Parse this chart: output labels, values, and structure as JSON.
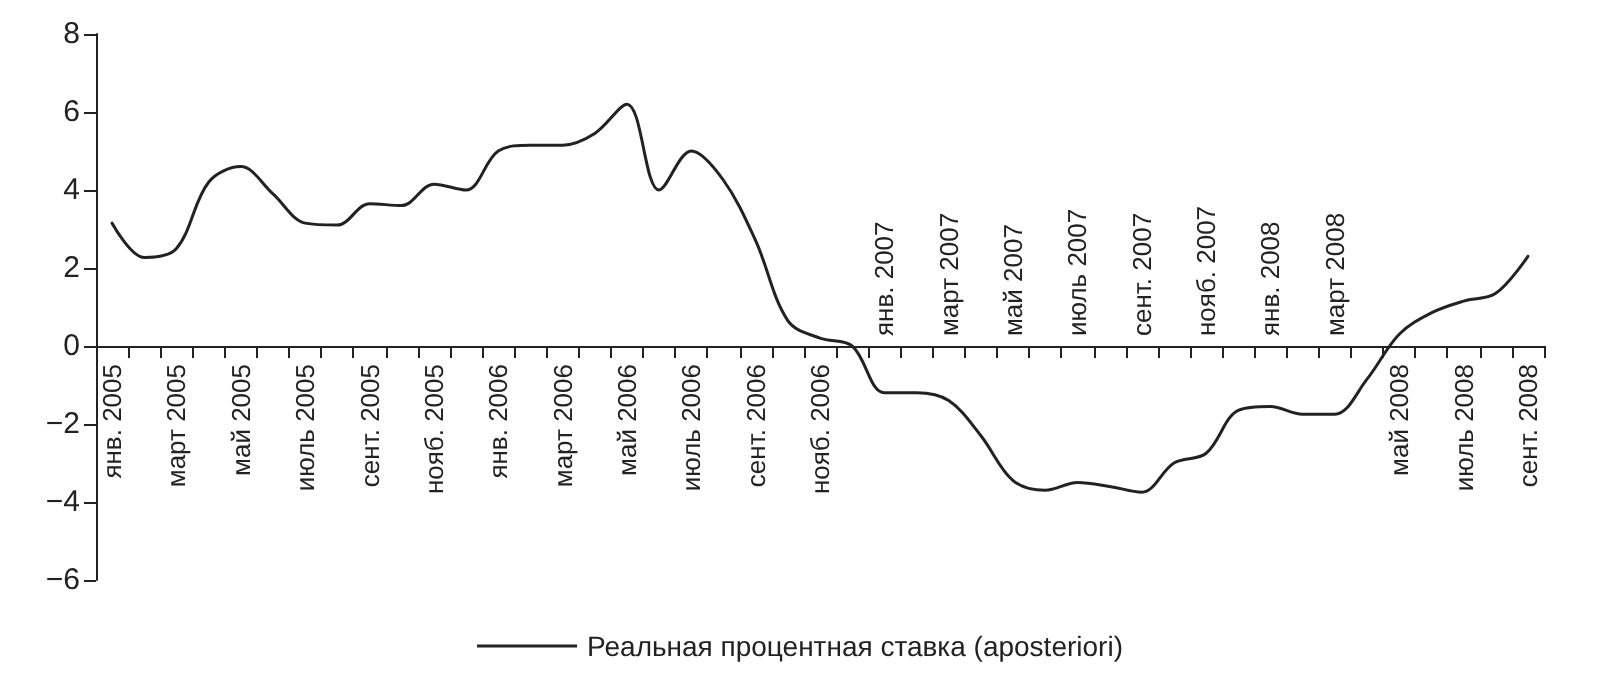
{
  "chart_data": {
    "type": "line",
    "categories": [
      "янв. 2005",
      null,
      "март 2005",
      null,
      "май 2005",
      null,
      "июль 2005",
      null,
      "сент. 2005",
      null,
      "нояб. 2005",
      null,
      "янв. 2006",
      null,
      "март 2006",
      null,
      "май 2006",
      null,
      "июль 2006",
      null,
      "сент. 2006",
      null,
      "нояб. 2006",
      null,
      "янв. 2007",
      null,
      "март 2007",
      null,
      "май 2007",
      null,
      "июль 2007",
      null,
      "сент. 2007",
      null,
      "нояб. 2007",
      null,
      "янв. 2008",
      null,
      "март 2008",
      null,
      "май 2008",
      null,
      "июль 2008",
      null,
      "сент. 2008"
    ],
    "series": [
      {
        "name": "Реальная процентная ставка (aposteriori)",
        "color": "#222222",
        "values": [
          3.15,
          2.27,
          2.5,
          4.2,
          4.6,
          3.9,
          3.15,
          3.1,
          3.65,
          3.6,
          4.15,
          4.0,
          5.0,
          5.15,
          5.15,
          5.45,
          6.2,
          4.0,
          5.0,
          4.25,
          2.7,
          0.65,
          0.2,
          0.0,
          -1.2,
          -1.2,
          -1.4,
          -2.3,
          -3.45,
          -3.7,
          -3.5,
          -3.6,
          -3.75,
          -3.0,
          -2.75,
          -1.65,
          -1.55,
          -1.75,
          -1.75,
          -0.85,
          0.3,
          0.85,
          1.15,
          1.35,
          2.3
        ]
      }
    ],
    "ylim": [
      -6,
      8
    ],
    "yticks": [
      -6,
      -4,
      -2,
      0,
      2,
      4,
      6,
      8
    ],
    "grid": false,
    "legend": "bottom",
    "marker": "none",
    "line_style": "solid"
  }
}
